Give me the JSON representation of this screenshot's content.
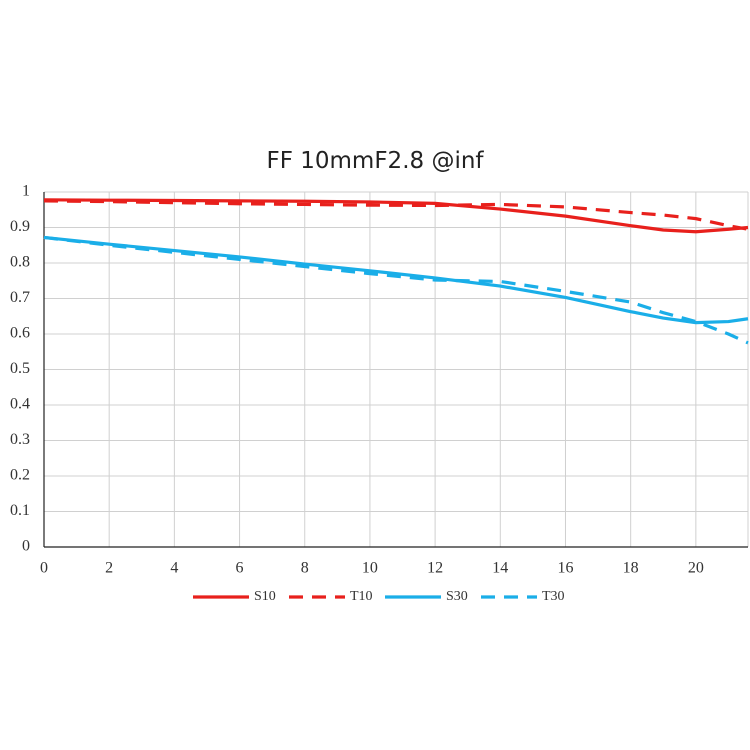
{
  "chart_data": {
    "type": "line",
    "title": "FF 10mmF2.8 @inf",
    "x": [
      0,
      2,
      4,
      6,
      8,
      10,
      12,
      14,
      16,
      18,
      19,
      20,
      21,
      21.6
    ],
    "series": [
      {
        "name": "S10",
        "color": "#e8201c",
        "dash": false,
        "values": [
          0.978,
          0.977,
          0.976,
          0.975,
          0.974,
          0.972,
          0.968,
          0.952,
          0.932,
          0.905,
          0.893,
          0.888,
          0.895,
          0.9
        ]
      },
      {
        "name": "T10",
        "color": "#e8201c",
        "dash": true,
        "values": [
          0.975,
          0.973,
          0.97,
          0.967,
          0.965,
          0.963,
          0.962,
          0.965,
          0.958,
          0.942,
          0.935,
          0.925,
          0.905,
          0.895
        ]
      },
      {
        "name": "S30",
        "color": "#1aaee8",
        "dash": false,
        "values": [
          0.872,
          0.853,
          0.835,
          0.817,
          0.797,
          0.778,
          0.758,
          0.735,
          0.703,
          0.663,
          0.645,
          0.632,
          0.635,
          0.643
        ]
      },
      {
        "name": "T30",
        "color": "#1aaee8",
        "dash": true,
        "values": [
          0.872,
          0.85,
          0.83,
          0.81,
          0.79,
          0.77,
          0.752,
          0.748,
          0.72,
          0.69,
          0.66,
          0.635,
          0.6,
          0.575
        ]
      }
    ],
    "xlim": [
      0,
      21.6
    ],
    "xticks": [
      0,
      2,
      4,
      6,
      8,
      10,
      12,
      14,
      16,
      18,
      20
    ],
    "ylim": [
      0,
      1
    ],
    "yticks": [
      0,
      0.1,
      0.2,
      0.3,
      0.4,
      0.5,
      0.6,
      0.7,
      0.8,
      0.9,
      1
    ],
    "grid": true
  }
}
